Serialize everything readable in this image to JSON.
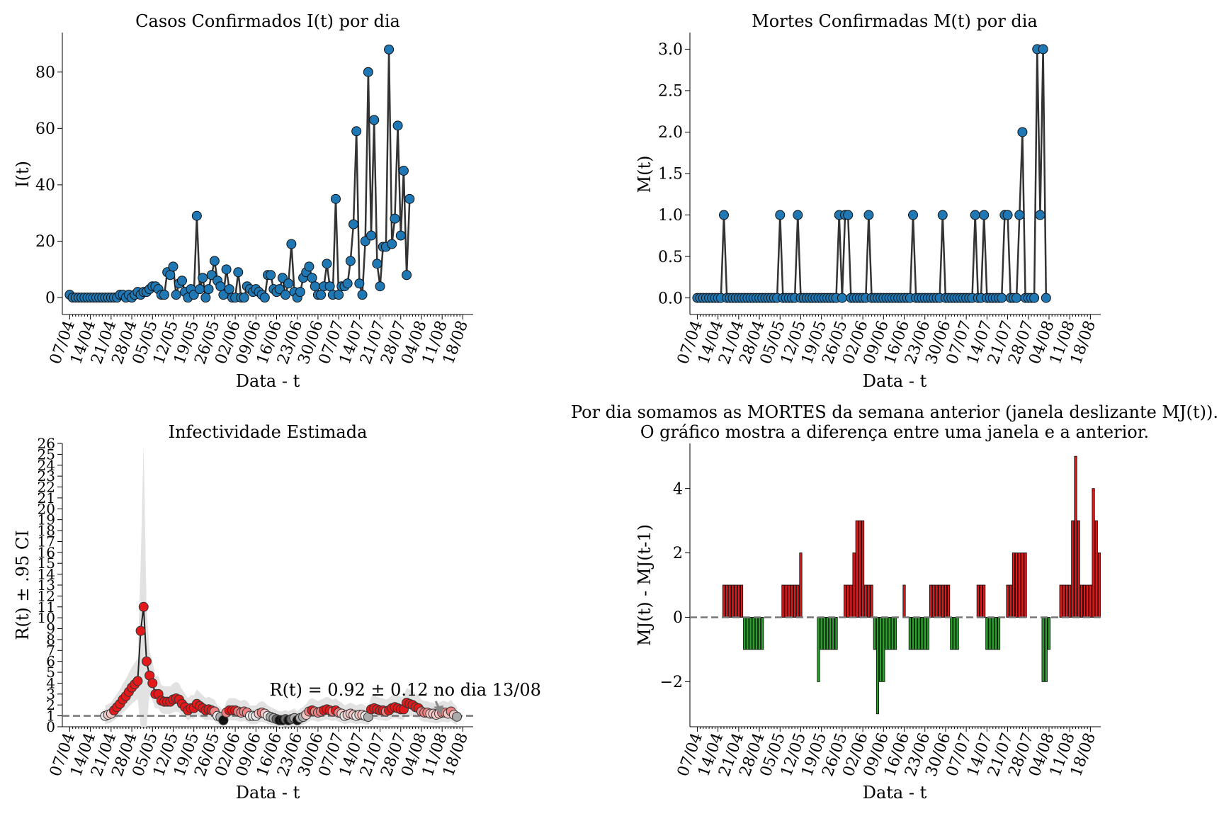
{
  "chart_data": [
    {
      "type": "line",
      "title": "Casos Confirmados I(t) por dia",
      "xlabel": "Data - t",
      "ylabel": "I(t)",
      "x_start": "07/04",
      "x_tick_labels": [
        "07/04",
        "14/04",
        "21/04",
        "28/04",
        "05/05",
        "12/05",
        "19/05",
        "26/05",
        "02/06",
        "09/06",
        "16/06",
        "23/06",
        "30/06",
        "07/07",
        "14/07",
        "21/07",
        "28/07",
        "04/08",
        "11/08",
        "18/08"
      ],
      "ylim": [
        -6,
        94
      ],
      "y_ticks": [
        0,
        20,
        40,
        60,
        80
      ],
      "line_color": "#333333",
      "marker_color": "#1f77b4",
      "values": [
        1,
        0,
        0,
        0,
        0,
        0,
        0,
        0,
        0,
        0,
        0,
        0,
        0,
        0,
        0,
        0,
        0,
        1,
        1,
        0,
        1,
        0,
        1,
        2,
        1,
        2,
        2,
        3,
        4,
        4,
        3,
        1,
        1,
        9,
        8,
        11,
        1,
        5,
        6,
        2,
        0,
        3,
        1,
        29,
        3,
        7,
        0,
        3,
        8,
        13,
        6,
        4,
        1,
        10,
        3,
        0,
        0,
        9,
        0,
        0,
        4,
        3,
        2,
        3,
        2,
        1,
        0,
        8,
        8,
        3,
        2,
        3,
        7,
        1,
        5,
        19,
        2,
        0,
        2,
        7,
        9,
        11,
        7,
        4,
        1,
        1,
        4,
        12,
        4,
        1,
        35,
        1,
        4,
        4,
        5,
        13,
        26,
        59,
        5,
        1,
        20,
        80,
        22,
        63,
        12,
        4,
        18,
        18,
        88,
        19,
        28,
        61,
        22,
        45,
        8,
        35
      ]
    },
    {
      "type": "line",
      "title": "Mortes Confirmadas M(t) por dia",
      "xlabel": "Data - t",
      "ylabel": "M(t)",
      "x_start": "07/04",
      "x_tick_labels": [
        "07/04",
        "14/04",
        "21/04",
        "28/04",
        "05/05",
        "12/05",
        "19/05",
        "26/05",
        "02/06",
        "09/06",
        "16/06",
        "23/06",
        "30/06",
        "07/07",
        "14/07",
        "21/07",
        "28/07",
        "04/08",
        "11/08",
        "18/08"
      ],
      "ylim": [
        -0.2,
        3.2
      ],
      "y_ticks": [
        "0.0",
        "0.5",
        "1.0",
        "1.5",
        "2.0",
        "2.5",
        "3.0"
      ],
      "line_color": "#333333",
      "marker_color": "#1f77b4",
      "values": [
        0,
        0,
        0,
        0,
        0,
        0,
        0,
        0,
        0,
        1,
        0,
        0,
        0,
        0,
        0,
        0,
        0,
        0,
        0,
        0,
        0,
        0,
        0,
        0,
        0,
        0,
        0,
        0,
        1,
        0,
        0,
        0,
        0,
        0,
        1,
        0,
        0,
        0,
        0,
        0,
        0,
        0,
        0,
        0,
        0,
        0,
        0,
        0,
        1,
        0,
        1,
        1,
        0,
        0,
        0,
        0,
        0,
        0,
        1,
        0,
        0,
        0,
        0,
        0,
        0,
        0,
        0,
        0,
        0,
        0,
        0,
        0,
        0,
        1,
        0,
        0,
        0,
        0,
        0,
        0,
        0,
        0,
        0,
        1,
        0,
        0,
        0,
        0,
        0,
        0,
        0,
        0,
        0,
        0,
        1,
        0,
        0,
        1,
        0,
        0,
        0,
        0,
        0,
        0,
        1,
        1,
        0,
        0,
        0,
        1,
        2,
        0,
        0,
        0,
        0,
        3,
        1,
        3,
        0
      ]
    },
    {
      "type": "scatter",
      "title": "Infectividade Estimada",
      "xlabel": "Data - t",
      "ylabel": "R(t) ± .95 CI",
      "x_start": "07/04",
      "x_tick_labels": [
        "07/04",
        "14/04",
        "21/04",
        "28/04",
        "05/05",
        "12/05",
        "19/05",
        "26/05",
        "02/06",
        "09/06",
        "16/06",
        "23/06",
        "30/06",
        "07/07",
        "14/07",
        "21/07",
        "28/07",
        "04/08",
        "11/08",
        "18/08"
      ],
      "ylim": [
        0,
        26
      ],
      "y_ticks": [
        0,
        1,
        2,
        3,
        4,
        5,
        6,
        7,
        8,
        9,
        10,
        11,
        12,
        13,
        14,
        15,
        16,
        17,
        18,
        19,
        20,
        21,
        22,
        23,
        24,
        25,
        26
      ],
      "reference_line": 1,
      "annotation": {
        "text": "R(t) = 0.92 ± 0.12 no dia 13/08",
        "x": 126,
        "y": 0.92
      },
      "shaded_ci": true,
      "first_day": 12,
      "r_values": [
        1.0,
        1.1,
        1.2,
        1.5,
        1.8,
        2.1,
        2.5,
        2.8,
        3.2,
        3.6,
        3.9,
        4.2,
        8.8,
        11.0,
        6.0,
        4.7,
        4.0,
        3.0,
        3.0,
        2.4,
        2.3,
        2.3,
        2.3,
        2.5,
        2.6,
        2.5,
        2.1,
        1.8,
        1.5,
        1.7,
        1.7,
        2.1,
        1.9,
        1.7,
        1.5,
        1.6,
        1.5,
        1.4,
        1.0,
        0.9,
        0.6,
        1.3,
        1.5,
        1.5,
        1.5,
        1.4,
        1.3,
        1.4,
        1.3,
        1.0,
        1.0,
        1.0,
        1.2,
        1.3,
        1.2,
        1.0,
        0.9,
        0.8,
        0.7,
        0.6,
        0.6,
        0.7,
        0.6,
        0.7,
        0.8,
        0.6,
        0.8,
        0.9,
        1.1,
        1.4,
        1.5,
        1.4,
        1.3,
        1.4,
        1.5,
        1.6,
        1.5,
        1.4,
        1.5,
        1.3,
        1.2,
        1.0,
        1.1,
        1.2,
        1.1,
        1.0,
        1.1,
        1.1,
        1.0,
        0.9,
        1.6,
        1.7,
        1.6,
        1.5,
        1.5,
        1.4,
        1.5,
        1.7,
        1.8,
        1.7,
        1.6,
        1.6,
        2.2,
        2.1,
        2.0,
        1.8,
        1.7,
        1.4,
        1.3,
        1.3,
        1.2,
        1.2,
        1.1,
        1.2,
        1.3,
        1.3,
        1.2,
        1.4,
        1.1,
        0.92
      ]
    },
    {
      "type": "bar",
      "title": "Por dia somamos as MORTES da semana anterior (janela deslizante MJ(t)).",
      "subtitle": "O gráfico mostra a diferença entre uma janela e a anterior.",
      "xlabel": "Data - t",
      "ylabel": "MJ(t) - MJ(t-1)",
      "x_start": "07/04",
      "x_tick_labels": [
        "07/04",
        "14/04",
        "21/04",
        "28/04",
        "05/05",
        "12/05",
        "19/05",
        "26/05",
        "02/06",
        "09/06",
        "16/06",
        "23/06",
        "30/06",
        "07/07",
        "14/07",
        "21/07",
        "28/07",
        "04/08",
        "11/08",
        "18/08"
      ],
      "ylim": [
        -3.4,
        5.4
      ],
      "y_ticks": [
        -2,
        0,
        2,
        4
      ],
      "positive_color": "#e31a1c",
      "negative_color": "#2ca02c",
      "values": [
        0,
        0,
        0,
        0,
        0,
        0,
        0,
        0,
        0,
        1,
        1,
        1,
        1,
        1,
        1,
        1,
        -1,
        -1,
        -1,
        -1,
        -1,
        -1,
        -1,
        0,
        0,
        0,
        0,
        0,
        0,
        1,
        1,
        1,
        1,
        1,
        1,
        2,
        0,
        0,
        0,
        0,
        0,
        -2,
        -1,
        -1,
        -1,
        -1,
        -1,
        -1,
        0,
        0,
        1,
        1,
        1,
        2,
        3,
        3,
        3,
        1,
        1,
        1,
        -1,
        -3,
        -2,
        -2,
        -1,
        -1,
        -1,
        -1,
        0,
        0,
        1,
        0,
        -1,
        -1,
        -1,
        -1,
        -1,
        -1,
        -1,
        1,
        1,
        1,
        1,
        1,
        1,
        1,
        -1,
        -1,
        -1,
        0,
        0,
        0,
        0,
        0,
        0,
        1,
        1,
        1,
        -1,
        -1,
        -1,
        -1,
        -1,
        0,
        0,
        1,
        1,
        2,
        2,
        2,
        2,
        2,
        0,
        0,
        0,
        0,
        0,
        -2,
        -2,
        -1,
        0,
        0,
        0,
        1,
        1,
        1,
        1,
        3,
        5,
        3,
        1,
        1,
        1,
        1,
        4,
        3,
        2
      ]
    }
  ]
}
